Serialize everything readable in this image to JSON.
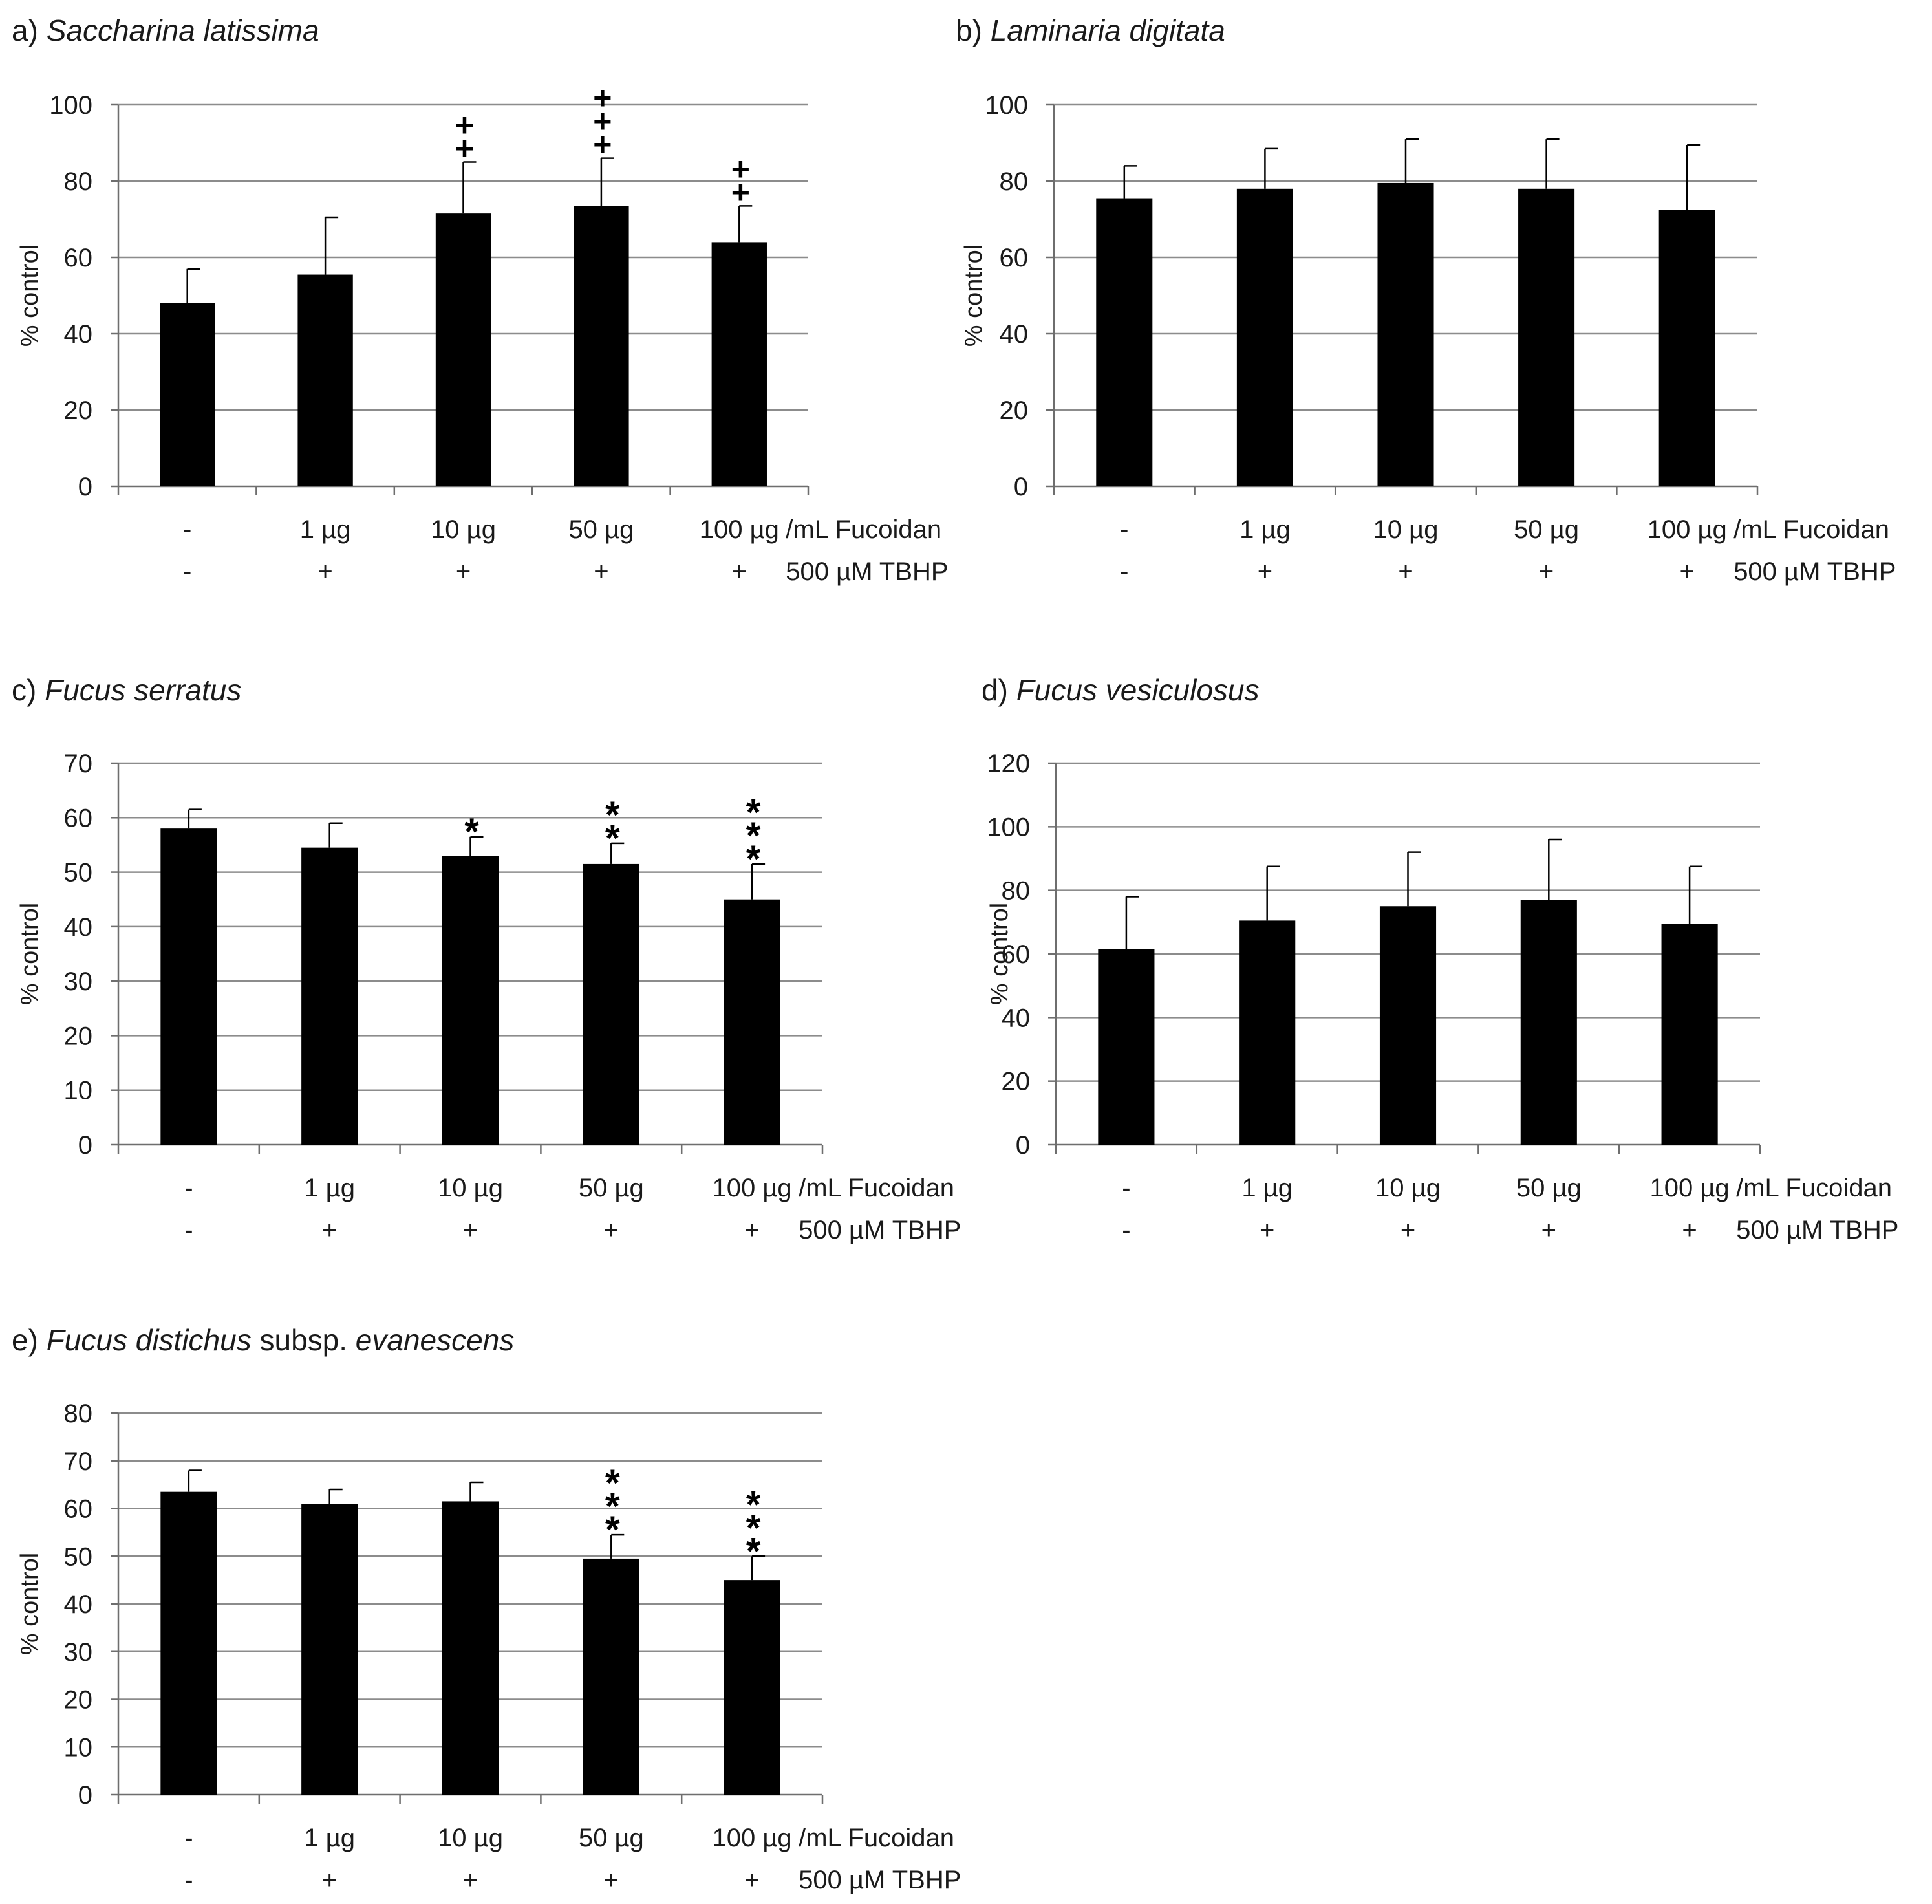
{
  "colors": {
    "bar": "#000000",
    "grid": "#8c8c8c",
    "axis": "#6e6e6e",
    "text": "#1a1a1a"
  },
  "chart_data": [
    {
      "type": "bar",
      "label": "a)",
      "title": "Saccharina latissima",
      "title_suffix": "",
      "ylabel": "% control",
      "ylim": [
        0,
        100
      ],
      "yticks": [
        0,
        20,
        40,
        60,
        80,
        100
      ],
      "categories": [
        "-",
        "1  µg",
        "10 µg",
        "50 µg",
        "100 µg"
      ],
      "tbhp": [
        "-",
        "+",
        "+",
        "+",
        "+"
      ],
      "fucoidan_unit": "/mL Fucoidan",
      "tbhp_label": "500 µM TBHP",
      "values": [
        48,
        55.5,
        71.5,
        73.5,
        64
      ],
      "errors": [
        9,
        15,
        13.5,
        12.5,
        9.5
      ],
      "marker": "+",
      "markers": [
        0,
        0,
        2,
        3,
        2
      ]
    },
    {
      "type": "bar",
      "label": "b)",
      "title": "Laminaria digitata",
      "title_suffix": "",
      "ylabel": "% control",
      "ylim": [
        0,
        100
      ],
      "yticks": [
        0,
        20,
        40,
        60,
        80,
        100
      ],
      "categories": [
        "-",
        "1  µg",
        "10 µg",
        "50 µg",
        "100 µg"
      ],
      "tbhp": [
        "-",
        "+",
        "+",
        "+",
        "+"
      ],
      "fucoidan_unit": "/mL Fucoidan",
      "tbhp_label": "500 µM TBHP",
      "values": [
        75.5,
        78,
        79.5,
        78,
        72.5
      ],
      "errors": [
        8.5,
        10.5,
        11.5,
        13,
        17
      ],
      "marker": "",
      "markers": [
        0,
        0,
        0,
        0,
        0
      ]
    },
    {
      "type": "bar",
      "label": "c)",
      "title": "Fucus serratus",
      "title_suffix": "",
      "ylabel": "% control",
      "ylim": [
        0,
        70
      ],
      "yticks": [
        0,
        10,
        20,
        30,
        40,
        50,
        60,
        70
      ],
      "categories": [
        "-",
        "1  µg",
        "10 µg",
        "50 µg",
        "100 µg"
      ],
      "tbhp": [
        "-",
        "+",
        "+",
        "+",
        "+"
      ],
      "fucoidan_unit": "/mL Fucoidan",
      "tbhp_label": "500 µM TBHP",
      "values": [
        58,
        54.5,
        53,
        51.5,
        45
      ],
      "errors": [
        3.5,
        4.5,
        3.5,
        3.8,
        6.5
      ],
      "marker": "*",
      "markers": [
        0,
        0,
        1,
        2,
        3
      ]
    },
    {
      "type": "bar",
      "label": "d)",
      "title": "Fucus vesiculosus",
      "title_suffix": "",
      "ylabel": "% control",
      "ylim": [
        0,
        120
      ],
      "yticks": [
        0,
        20,
        40,
        60,
        80,
        100,
        120
      ],
      "categories": [
        "-",
        "1  µg",
        "10 µg",
        "50 µg",
        "100 µg"
      ],
      "tbhp": [
        "-",
        "+",
        "+",
        "+",
        "+"
      ],
      "fucoidan_unit": "/mL Fucoidan",
      "tbhp_label": "500 µM TBHP",
      "values": [
        61.5,
        70.5,
        75,
        77,
        69.5
      ],
      "errors": [
        16.5,
        17,
        17,
        19,
        18
      ],
      "marker": "",
      "markers": [
        0,
        0,
        0,
        0,
        0
      ]
    },
    {
      "type": "bar",
      "label": "e)",
      "title": "Fucus distichus",
      "title_suffix": " subsp. ",
      "title_suffix_italic": "evanescens",
      "ylabel": "% control",
      "ylim": [
        0,
        80
      ],
      "yticks": [
        0,
        10,
        20,
        30,
        40,
        50,
        60,
        70,
        80
      ],
      "categories": [
        "-",
        "1  µg",
        "10 µg",
        "50 µg",
        "100 µg"
      ],
      "tbhp": [
        "-",
        "+",
        "+",
        "+",
        "+"
      ],
      "fucoidan_unit": "/mL Fucoidan",
      "tbhp_label": "500 µM TBHP",
      "values": [
        63.5,
        61,
        61.5,
        49.5,
        45
      ],
      "errors": [
        4.5,
        3,
        4,
        5,
        5
      ],
      "marker": "*",
      "markers": [
        0,
        0,
        0,
        3,
        3
      ]
    }
  ]
}
